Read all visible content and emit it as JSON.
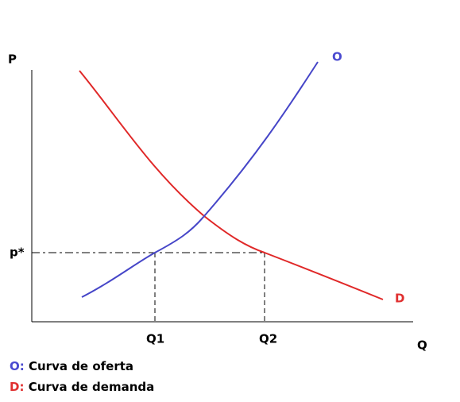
{
  "axes": {
    "y_label": "P",
    "x_label": "Q"
  },
  "curves": {
    "supply_label": "O",
    "demand_label": "D"
  },
  "marks": {
    "price": "p*",
    "q1": "Q1",
    "q2": "Q2"
  },
  "legend": [
    {
      "key": "O:",
      "text": "Curva de oferta"
    },
    {
      "key": "D:",
      "text": "Curva de demanda"
    }
  ]
}
